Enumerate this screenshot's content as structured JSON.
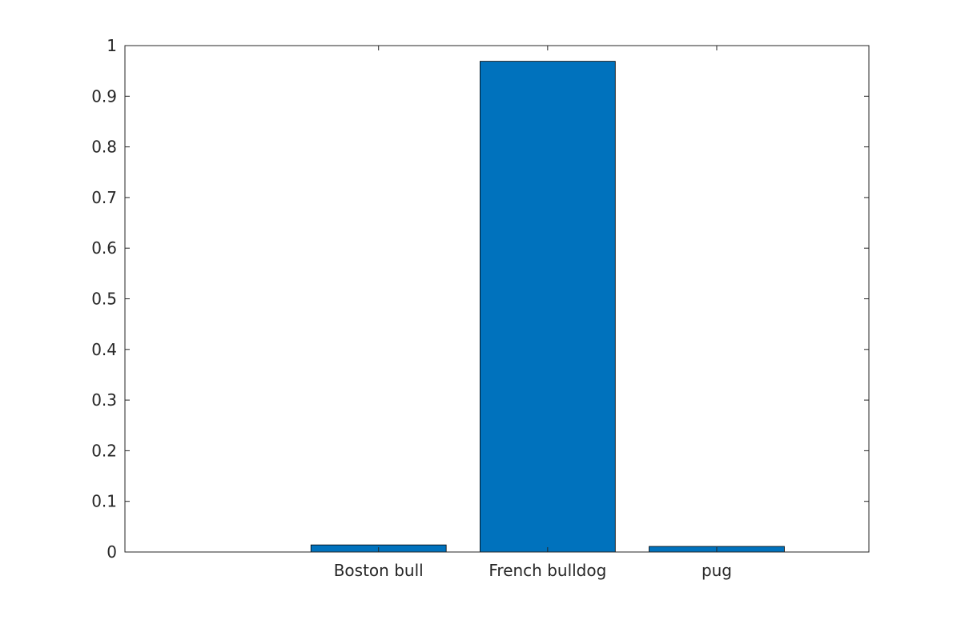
{
  "chart_data": {
    "type": "bar",
    "categories": [
      "Boston bull",
      "French bulldog",
      "pug"
    ],
    "values": [
      0.014,
      0.969,
      0.011
    ],
    "title": "",
    "xlabel": "",
    "ylabel": "",
    "xlim": [
      0.5,
      4.9
    ],
    "ylim": [
      0,
      1
    ],
    "yticks": [
      0,
      0.1,
      0.2,
      0.3,
      0.4,
      0.5,
      0.6,
      0.7,
      0.8,
      0.9,
      1
    ],
    "ytick_labels": [
      "0",
      "0.1",
      "0.2",
      "0.3",
      "0.4",
      "0.5",
      "0.6",
      "0.7",
      "0.8",
      "0.9",
      "1"
    ],
    "grid": false,
    "bar_color": "#0072BD",
    "axis_color": "#262626"
  }
}
